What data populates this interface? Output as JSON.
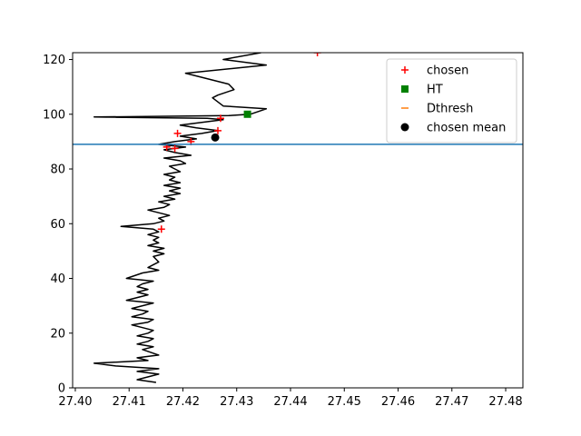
{
  "chart_data": {
    "type": "line",
    "title": "",
    "xlabel": "",
    "ylabel": "",
    "xlim": [
      27.3995,
      27.4832
    ],
    "ylim": [
      0,
      122.5
    ],
    "xticks": [
      "27.40",
      "27.41",
      "27.42",
      "27.43",
      "27.44",
      "27.45",
      "27.46",
      "27.47",
      "27.48"
    ],
    "yticks": [
      "0",
      "20",
      "40",
      "60",
      "80",
      "100",
      "120"
    ],
    "grid": false,
    "legend_position": "upper right",
    "profile": {
      "color": "#000000",
      "points": [
        [
          27.415,
          2
        ],
        [
          27.4115,
          3
        ],
        [
          27.4155,
          5
        ],
        [
          27.4115,
          6
        ],
        [
          27.4155,
          7
        ],
        [
          27.4075,
          8
        ],
        [
          27.4035,
          9
        ],
        [
          27.4135,
          10
        ],
        [
          27.4115,
          11
        ],
        [
          27.4155,
          12
        ],
        [
          27.4125,
          14
        ],
        [
          27.4145,
          15
        ],
        [
          27.4115,
          16
        ],
        [
          27.4135,
          17
        ],
        [
          27.4145,
          18
        ],
        [
          27.4115,
          19
        ],
        [
          27.4135,
          20
        ],
        [
          27.4145,
          21
        ],
        [
          27.4105,
          23
        ],
        [
          27.4135,
          24
        ],
        [
          27.4145,
          25
        ],
        [
          27.4105,
          26
        ],
        [
          27.4125,
          27
        ],
        [
          27.4135,
          28
        ],
        [
          27.4105,
          29
        ],
        [
          27.4125,
          30
        ],
        [
          27.4145,
          31
        ],
        [
          27.4095,
          32
        ],
        [
          27.4115,
          33
        ],
        [
          27.4135,
          34
        ],
        [
          27.4115,
          35
        ],
        [
          27.4135,
          36
        ],
        [
          27.4115,
          37
        ],
        [
          27.4125,
          38
        ],
        [
          27.4145,
          39
        ],
        [
          27.4095,
          40
        ],
        [
          27.4125,
          42
        ],
        [
          27.4155,
          43
        ],
        [
          27.4135,
          44
        ],
        [
          27.4145,
          45
        ],
        [
          27.4155,
          46
        ],
        [
          27.4145,
          48
        ],
        [
          27.4165,
          49
        ],
        [
          27.4145,
          50
        ],
        [
          27.4165,
          51
        ],
        [
          27.4135,
          52
        ],
        [
          27.4155,
          53
        ],
        [
          27.4145,
          54
        ],
        [
          27.4155,
          55
        ],
        [
          27.4135,
          56
        ],
        [
          27.4155,
          57
        ],
        [
          27.4145,
          58
        ],
        [
          27.4085,
          59
        ],
        [
          27.4145,
          60
        ],
        [
          27.4165,
          61
        ],
        [
          27.4155,
          62
        ],
        [
          27.4175,
          63
        ],
        [
          27.4155,
          64
        ],
        [
          27.4135,
          65
        ],
        [
          27.4165,
          66
        ],
        [
          27.4175,
          67
        ],
        [
          27.4155,
          68
        ],
        [
          27.4185,
          69
        ],
        [
          27.4165,
          70
        ],
        [
          27.4195,
          71
        ],
        [
          27.4175,
          72
        ],
        [
          27.4195,
          73
        ],
        [
          27.4165,
          74
        ],
        [
          27.4195,
          75
        ],
        [
          27.4175,
          76
        ],
        [
          27.4185,
          77
        ],
        [
          27.4165,
          78
        ],
        [
          27.4195,
          79
        ],
        [
          27.4185,
          80
        ],
        [
          27.4175,
          81
        ],
        [
          27.4205,
          82
        ],
        [
          27.4195,
          83
        ],
        [
          27.4165,
          84
        ],
        [
          27.4215,
          85
        ],
        [
          27.4185,
          86
        ],
        [
          27.4165,
          87
        ],
        [
          27.4205,
          88
        ],
        [
          27.4155,
          89
        ],
        [
          27.4185,
          90
        ],
        [
          27.4225,
          91
        ],
        [
          27.4195,
          92
        ],
        [
          27.4235,
          93
        ],
        [
          27.4265,
          94
        ],
        [
          27.4225,
          95
        ],
        [
          27.4195,
          96
        ],
        [
          27.4275,
          98
        ],
        [
          27.4245,
          98.5
        ],
        [
          27.4035,
          99
        ],
        [
          27.4285,
          99.5
        ],
        [
          27.4325,
          100
        ],
        [
          27.4355,
          102
        ],
        [
          27.4275,
          103
        ],
        [
          27.4255,
          106
        ],
        [
          27.4265,
          107
        ],
        [
          27.4295,
          109
        ],
        [
          27.4285,
          111
        ],
        [
          27.4205,
          115
        ],
        [
          27.4355,
          118
        ],
        [
          27.4275,
          120
        ],
        [
          27.4345,
          122.5
        ]
      ]
    },
    "series": [
      {
        "name": "chosen",
        "marker": "plus",
        "color": "#ff0000",
        "points": [
          [
            27.445,
            122.5
          ],
          [
            27.427,
            98.5
          ],
          [
            27.419,
            93
          ],
          [
            27.4265,
            94
          ],
          [
            27.4215,
            90
          ],
          [
            27.417,
            88
          ],
          [
            27.4185,
            87.5
          ],
          [
            27.416,
            58
          ]
        ]
      },
      {
        "name": "HT",
        "marker": "square",
        "color": "#008000",
        "points": [
          [
            27.432,
            100
          ]
        ]
      },
      {
        "name": "Dthresh",
        "marker": "hline",
        "color": "#1f77b4",
        "legend_color": "#ff7f0e",
        "y": 89
      },
      {
        "name": "chosen mean",
        "marker": "circle",
        "color": "#000000",
        "points": [
          [
            27.426,
            91.5
          ]
        ]
      }
    ]
  }
}
